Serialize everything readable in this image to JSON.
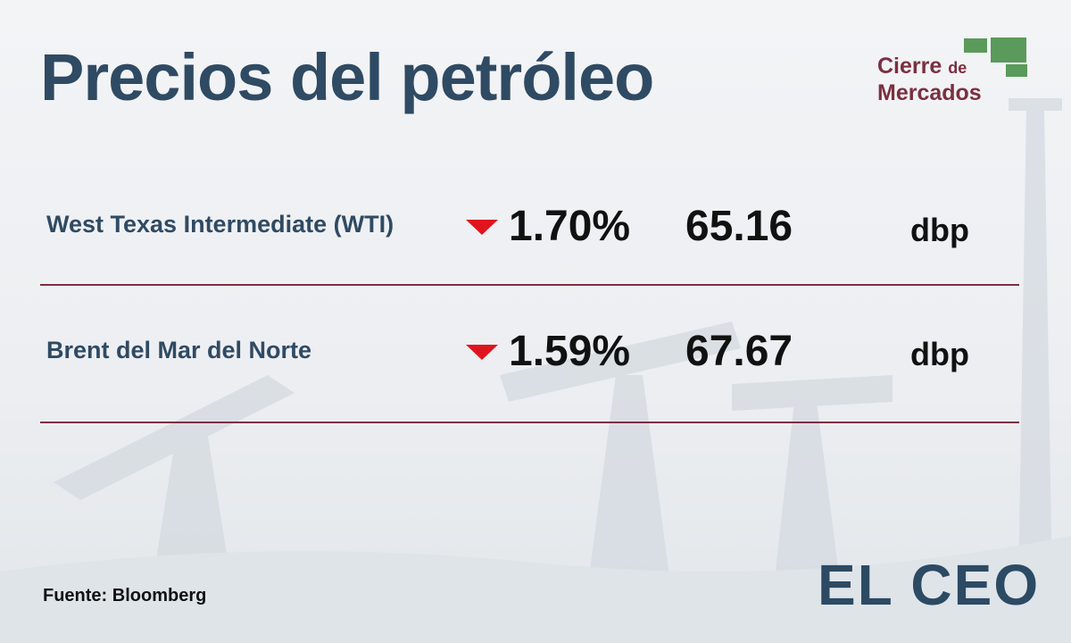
{
  "title": "Precios del petróleo",
  "badge": {
    "line1": "Cierre",
    "line1_small": "de",
    "line2": "Mercados"
  },
  "rows": [
    {
      "name": "West Texas Intermediate (WTI)",
      "change": "1.70%",
      "price": "65.16",
      "unit": "dbp"
    },
    {
      "name": "Brent del Mar del Norte",
      "change": "1.59%",
      "price": "67.67",
      "unit": "dbp"
    }
  ],
  "source": "Fuente: Bloomberg",
  "logo": "EL CEO"
}
